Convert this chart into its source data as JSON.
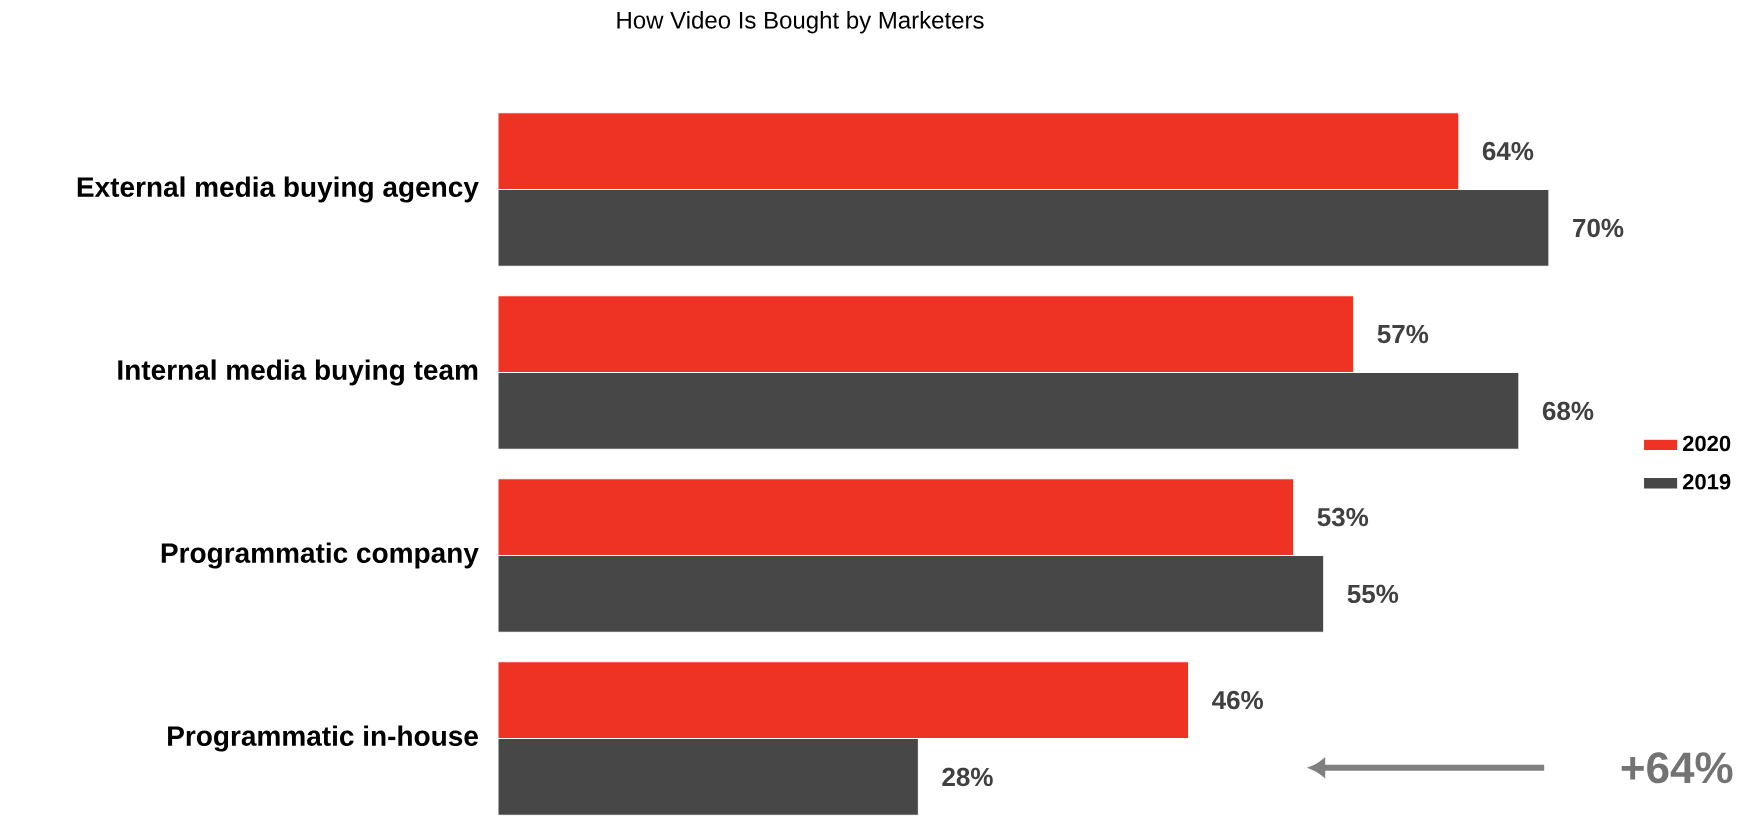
{
  "chart_data": {
    "type": "bar",
    "orientation": "horizontal",
    "title": "How Video Is Bought by Marketers",
    "categories": [
      "External media buying agency",
      "Internal media buying team",
      "Programmatic company",
      "Programmatic in-house"
    ],
    "series": [
      {
        "name": "2020",
        "color": "#ee3224",
        "values": [
          64,
          57,
          53,
          46
        ],
        "value_labels": [
          "64%",
          "57%",
          "53%",
          "46%"
        ]
      },
      {
        "name": "2019",
        "color": "#474747",
        "values": [
          70,
          68,
          55,
          28
        ],
        "value_labels": [
          "70%",
          "68%",
          "55%",
          "28%"
        ]
      }
    ],
    "legend": "right",
    "annotations": [
      "+64%"
    ]
  }
}
